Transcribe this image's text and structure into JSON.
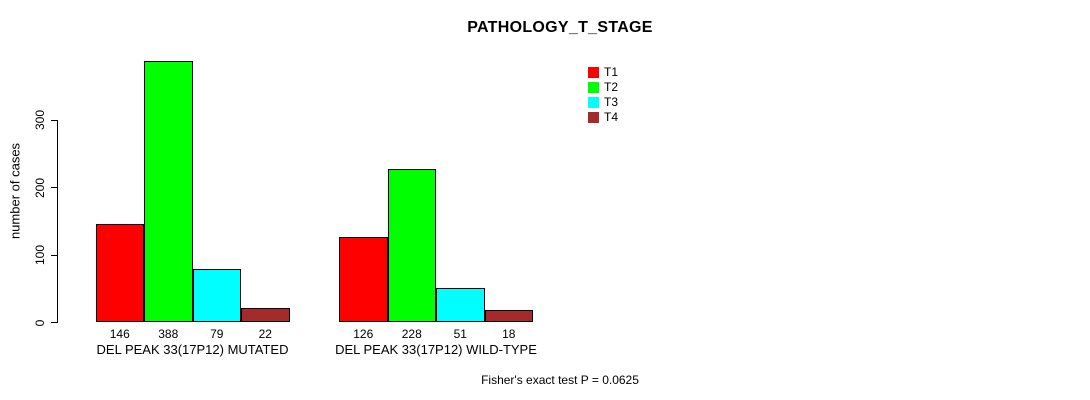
{
  "title": "PATHOLOGY_T_STAGE",
  "y_axis": {
    "label": "number of cases",
    "ticks": [
      0,
      100,
      200,
      300
    ]
  },
  "legend": {
    "items": [
      {
        "label": "T1",
        "color": "#FF0000"
      },
      {
        "label": "T2",
        "color": "#00FF00"
      },
      {
        "label": "T3",
        "color": "#00FFFF"
      },
      {
        "label": "T4",
        "color": "#A52A2A"
      }
    ]
  },
  "footer": "Fisher's exact test P = 0.0625",
  "chart_data": {
    "type": "bar",
    "title": "PATHOLOGY_T_STAGE",
    "ylabel": "number of cases",
    "xlabel": "",
    "yticks": [
      0,
      100,
      200,
      300
    ],
    "ylim": [
      0,
      390
    ],
    "grid": false,
    "legend_position": "top-right",
    "stages": [
      "T1",
      "T2",
      "T3",
      "T4"
    ],
    "stage_colors": [
      "#FF0000",
      "#00FF00",
      "#00FFFF",
      "#A52A2A"
    ],
    "groups": [
      {
        "label": "DEL PEAK 33(17P12) MUTATED",
        "values": [
          146,
          388,
          79,
          22
        ]
      },
      {
        "label": "DEL PEAK 33(17P12) WILD-TYPE",
        "values": [
          126,
          228,
          51,
          18
        ]
      }
    ],
    "annotation": "Fisher's exact test P = 0.0625"
  }
}
